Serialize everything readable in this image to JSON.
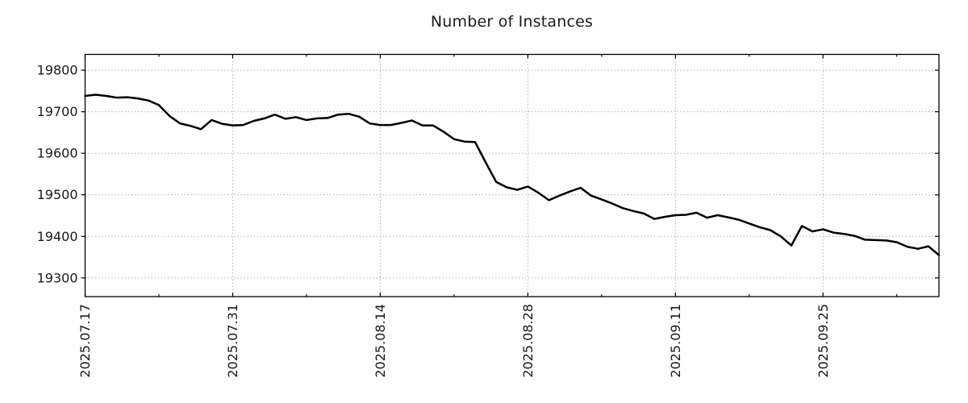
{
  "chart_data": {
    "type": "line",
    "title": "Number of Instances",
    "xlabel": "",
    "ylabel": "",
    "legend": "none",
    "grid": true,
    "line_color": "#000000",
    "grid_color": "#b0b0b0",
    "axis_color": "#000000",
    "text_color": "#1a1a1a",
    "ylim": [
      19255,
      19838
    ],
    "yticks": [
      19300,
      19400,
      19500,
      19600,
      19700,
      19800
    ],
    "xtick_major_indices": [
      0,
      14,
      28,
      42,
      56,
      70
    ],
    "xtick_major_labels": [
      "2025.07.17",
      "2025.07.31",
      "2025.08.14",
      "2025.08.28",
      "2025.09.11",
      "2025.09.25"
    ],
    "xtick_minor_indices": [
      7,
      21,
      35,
      49,
      63,
      77
    ],
    "x": [
      "2025.07.17",
      "2025.07.18",
      "2025.07.19",
      "2025.07.20",
      "2025.07.21",
      "2025.07.22",
      "2025.07.23",
      "2025.07.24",
      "2025.07.25",
      "2025.07.26",
      "2025.07.27",
      "2025.07.28",
      "2025.07.29",
      "2025.07.30",
      "2025.07.31",
      "2025.08.01",
      "2025.08.02",
      "2025.08.03",
      "2025.08.04",
      "2025.08.05",
      "2025.08.06",
      "2025.08.07",
      "2025.08.08",
      "2025.08.09",
      "2025.08.10",
      "2025.08.11",
      "2025.08.12",
      "2025.08.13",
      "2025.08.14",
      "2025.08.15",
      "2025.08.16",
      "2025.08.17",
      "2025.08.18",
      "2025.08.19",
      "2025.08.20",
      "2025.08.21",
      "2025.08.22",
      "2025.08.23",
      "2025.08.24",
      "2025.08.25",
      "2025.08.26",
      "2025.08.27",
      "2025.08.28",
      "2025.08.29",
      "2025.08.30",
      "2025.08.31",
      "2025.09.01",
      "2025.09.02",
      "2025.09.03",
      "2025.09.04",
      "2025.09.05",
      "2025.09.06",
      "2025.09.07",
      "2025.09.08",
      "2025.09.09",
      "2025.09.10",
      "2025.09.11",
      "2025.09.12",
      "2025.09.13",
      "2025.09.14",
      "2025.09.15",
      "2025.09.16",
      "2025.09.17",
      "2025.09.18",
      "2025.09.19",
      "2025.09.20",
      "2025.09.21",
      "2025.09.22",
      "2025.09.23",
      "2025.09.24",
      "2025.09.25",
      "2025.09.26",
      "2025.09.27",
      "2025.09.28",
      "2025.09.29",
      "2025.09.30",
      "2025.10.01",
      "2025.10.02",
      "2025.10.03",
      "2025.10.04",
      "2025.10.05",
      "2025.10.06"
    ],
    "values": [
      19738,
      19741,
      19738,
      19734,
      19735,
      19732,
      19727,
      19716,
      19690,
      19672,
      19666,
      19658,
      19680,
      19671,
      19667,
      19668,
      19678,
      19684,
      19693,
      19683,
      19687,
      19680,
      19684,
      19685,
      19693,
      19695,
      19688,
      19672,
      19668,
      19668,
      19673,
      19679,
      19667,
      19667,
      19652,
      19634,
      19628,
      19627,
      19578,
      19531,
      19518,
      19512,
      19520,
      19505,
      19487,
      19498,
      19508,
      19517,
      19498,
      19489,
      19479,
      19468,
      19461,
      19455,
      19442,
      19447,
      19451,
      19452,
      19457,
      19445,
      19451,
      19446,
      19440,
      19431,
      19422,
      19415,
      19400,
      19378,
      19425,
      19412,
      19417,
      19409,
      19406,
      19401,
      19392,
      19391,
      19390,
      19386,
      19375,
      19370,
      19376,
      19355
    ]
  }
}
